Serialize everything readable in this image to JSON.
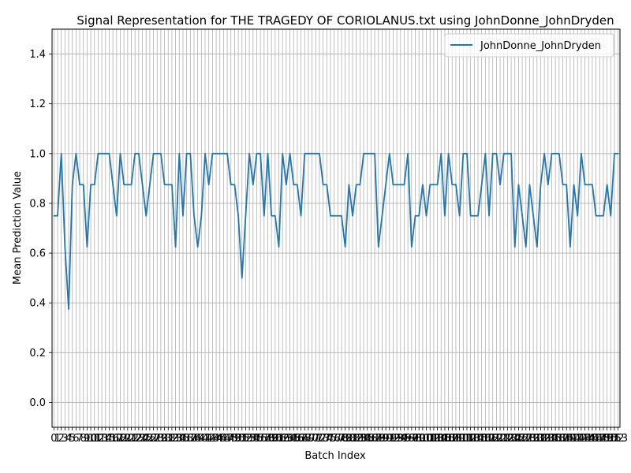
{
  "chart_data": {
    "type": "line",
    "title": "Signal Representation for THE TRAGEDY OF CORIOLANUS.txt using JohnDonne_JohnDryden",
    "xlabel": "Batch Index",
    "ylabel": "Mean Prediction Value",
    "ylim": [
      -0.1,
      1.5
    ],
    "xlim": [
      -0.5,
      153.5
    ],
    "yticks": [
      0.0,
      0.2,
      0.4,
      0.6,
      0.8,
      1.0,
      1.2,
      1.4
    ],
    "ytick_labels": [
      "0.0",
      "0.2",
      "0.4",
      "0.6",
      "0.8",
      "1.0",
      "1.2",
      "1.4"
    ],
    "grid": true,
    "legend_position": "upper-right",
    "color": "#1f77b4",
    "series": [
      {
        "name": "JohnDonne_JohnDryden",
        "x": [
          0,
          1,
          2,
          3,
          4,
          5,
          6,
          7,
          8,
          9,
          10,
          11,
          12,
          13,
          14,
          15,
          16,
          17,
          18,
          19,
          20,
          21,
          22,
          23,
          24,
          25,
          26,
          27,
          28,
          29,
          30,
          31,
          32,
          33,
          34,
          35,
          36,
          37,
          38,
          39,
          40,
          41,
          42,
          43,
          44,
          45,
          46,
          47,
          48,
          49,
          50,
          51,
          52,
          53,
          54,
          55,
          56,
          57,
          58,
          59,
          60,
          61,
          62,
          63,
          64,
          65,
          66,
          67,
          68,
          69,
          70,
          71,
          72,
          73,
          74,
          75,
          76,
          77,
          78,
          79,
          80,
          81,
          82,
          83,
          84,
          85,
          86,
          87,
          88,
          89,
          90,
          91,
          92,
          93,
          94,
          95,
          96,
          97,
          98,
          99,
          100,
          101,
          102,
          103,
          104,
          105,
          106,
          107,
          108,
          109,
          110,
          111,
          112,
          113,
          114,
          115,
          116,
          117,
          118,
          119,
          120,
          121,
          122,
          123,
          124,
          125,
          126,
          127,
          128,
          129,
          130,
          131,
          132,
          133,
          134,
          135,
          136,
          137,
          138,
          139,
          140,
          141,
          142,
          143,
          144,
          145,
          146,
          147,
          148,
          149,
          150,
          151,
          152,
          153
        ],
        "values": [
          0.75,
          0.75,
          1.0,
          0.625,
          0.375,
          0.875,
          1.0,
          0.875,
          0.875,
          0.625,
          0.875,
          0.875,
          1.0,
          1.0,
          1.0,
          1.0,
          0.875,
          0.75,
          1.0,
          0.875,
          0.875,
          0.875,
          1.0,
          1.0,
          0.875,
          0.75,
          0.875,
          1.0,
          1.0,
          1.0,
          0.875,
          0.875,
          0.875,
          0.625,
          1.0,
          0.75,
          1.0,
          1.0,
          0.75,
          0.625,
          0.75,
          1.0,
          0.875,
          1.0,
          1.0,
          1.0,
          1.0,
          1.0,
          0.875,
          0.875,
          0.75,
          0.5,
          0.75,
          1.0,
          0.875,
          1.0,
          1.0,
          0.75,
          1.0,
          0.75,
          0.75,
          0.625,
          1.0,
          0.875,
          1.0,
          0.875,
          0.875,
          0.75,
          1.0,
          1.0,
          1.0,
          1.0,
          1.0,
          0.875,
          0.875,
          0.75,
          0.75,
          0.75,
          0.75,
          0.625,
          0.875,
          0.75,
          0.875,
          0.875,
          1.0,
          1.0,
          1.0,
          1.0,
          0.625,
          0.75,
          0.875,
          1.0,
          0.875,
          0.875,
          0.875,
          0.875,
          1.0,
          0.625,
          0.75,
          0.75,
          0.875,
          0.75,
          0.875,
          0.875,
          0.875,
          1.0,
          0.75,
          1.0,
          0.875,
          0.875,
          0.75,
          1.0,
          1.0,
          0.75,
          0.75,
          0.75,
          0.875,
          1.0,
          0.75,
          1.0,
          1.0,
          0.875,
          1.0,
          1.0,
          1.0,
          0.625,
          0.875,
          0.75,
          0.625,
          0.875,
          0.75,
          0.625,
          0.875,
          1.0,
          0.875,
          1.0,
          1.0,
          1.0,
          0.875,
          0.875,
          0.625,
          0.875,
          0.75,
          1.0,
          0.875,
          0.875,
          0.875,
          0.75,
          0.75,
          0.75,
          0.875,
          0.75,
          1.0,
          1.0
        ]
      }
    ]
  }
}
